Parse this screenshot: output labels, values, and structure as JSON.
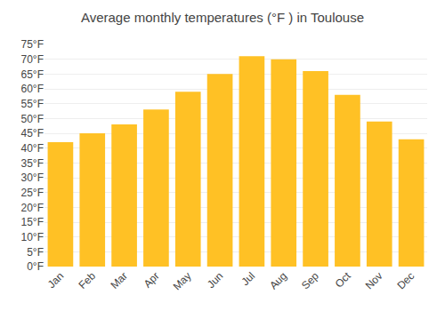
{
  "chart_data": {
    "type": "bar",
    "title": "Average monthly temperatures (°F ) in Toulouse",
    "categories": [
      "Jan",
      "Feb",
      "Mar",
      "Apr",
      "May",
      "Jun",
      "Jul",
      "Aug",
      "Sep",
      "Oct",
      "Nov",
      "Dec"
    ],
    "values": [
      42,
      45,
      48,
      53,
      59,
      65,
      71,
      70,
      66,
      58,
      49,
      43
    ],
    "color": "#FFC125",
    "ylim": [
      0,
      75
    ],
    "yticks": [
      {
        "value": 0,
        "label": "0°F"
      },
      {
        "value": 5,
        "label": "5°F"
      },
      {
        "value": 10,
        "label": "10°F"
      },
      {
        "value": 15,
        "label": "15°F"
      },
      {
        "value": 20,
        "label": "20°F"
      },
      {
        "value": 25,
        "label": "25°F"
      },
      {
        "value": 30,
        "label": "30°F"
      },
      {
        "value": 35,
        "label": "35°F"
      },
      {
        "value": 40,
        "label": "40°F"
      },
      {
        "value": 45,
        "label": "45°F"
      },
      {
        "value": 50,
        "label": "50°F"
      },
      {
        "value": 55,
        "label": "55°F"
      },
      {
        "value": 60,
        "label": "60°F"
      },
      {
        "value": 65,
        "label": "65°F"
      },
      {
        "value": 70,
        "label": "70°F"
      },
      {
        "value": 75,
        "label": "75°F"
      }
    ],
    "grid": true
  }
}
